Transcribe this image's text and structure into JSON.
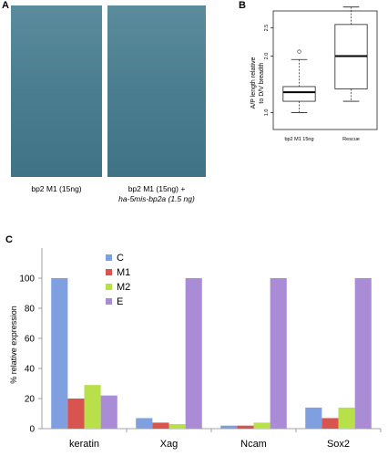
{
  "panels": {
    "a": "A",
    "b": "B",
    "c": "C"
  },
  "panel_a": {
    "caption_left": "bp2 M1 (15ng)",
    "caption_right_line1": "bp2 M1 (15ng) +",
    "caption_right_line2": "ha-5mis-bp2a (1.5 ng)"
  },
  "chart_data": [
    {
      "type": "boxplot",
      "ylabel": "A/P length relative to D/V breadth",
      "ylabel_line1": "A/P length relative",
      "ylabel_line2": "to D/V breadth",
      "categories": [
        "bp2 M1 15ng",
        "Rescue"
      ],
      "y_ticks": [
        "1.0",
        "2.0",
        "2.5"
      ],
      "ylim": [
        0.7,
        2.8
      ],
      "boxes": [
        {
          "category": "bp2 M1 15ng",
          "whisker_low": 1.0,
          "q1": 1.2,
          "median": 1.36,
          "q3": 1.46,
          "whisker_high": 1.94,
          "outliers": [
            2.08
          ]
        },
        {
          "category": "Rescue",
          "whisker_low": 1.2,
          "q1": 1.42,
          "median": 2.0,
          "q3": 2.56,
          "whisker_high": 2.87,
          "outliers": []
        }
      ]
    },
    {
      "type": "bar",
      "ylabel": "% relative expression",
      "categories": [
        "keratin",
        "Xag",
        "Ncam",
        "Sox2"
      ],
      "ylim": [
        0,
        120
      ],
      "y_ticks": [
        0,
        20,
        40,
        60,
        80,
        100
      ],
      "legend_position": "top-left",
      "series": [
        {
          "name": "C",
          "color": "#7f9fe0",
          "values": [
            100,
            7,
            2,
            14
          ]
        },
        {
          "name": "M1",
          "color": "#d9534f",
          "values": [
            20,
            4,
            2,
            7
          ]
        },
        {
          "name": "M2",
          "color": "#b7e04a",
          "values": [
            29,
            3,
            4,
            14
          ]
        },
        {
          "name": "E",
          "color": "#a98bd6",
          "values": [
            22,
            100,
            100,
            100
          ]
        }
      ]
    }
  ]
}
